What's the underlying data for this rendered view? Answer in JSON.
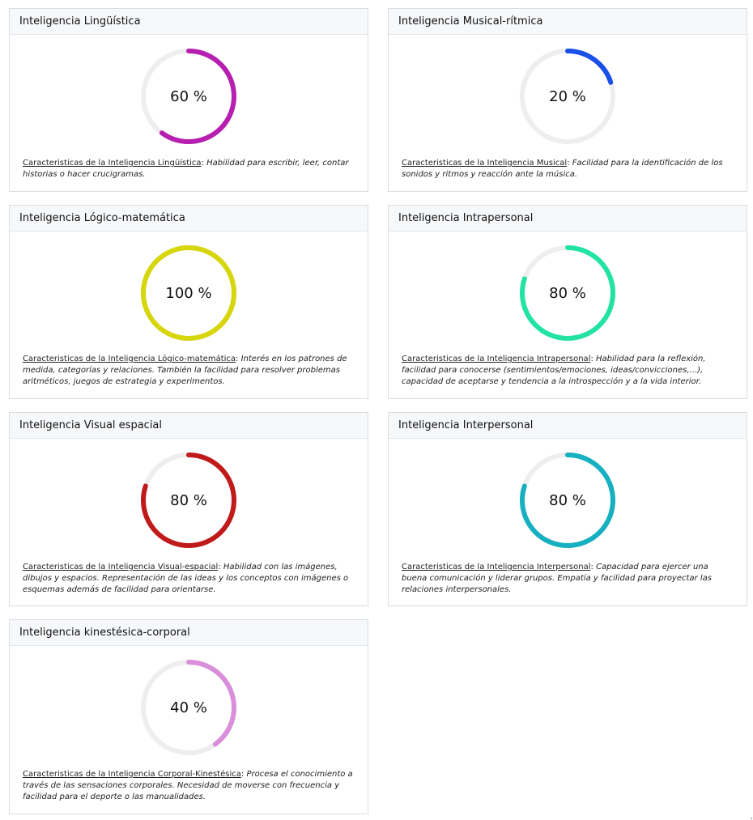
{
  "cards": [
    {
      "title": "Inteligencia Lingüística",
      "percent": 60,
      "percent_label": "60 %",
      "color": "#b71fb0",
      "term": "Caracteristicas de la Inteligencia Lingüística",
      "sep": ": ",
      "text": "Habilidad para escribir, leer, contar historias o hacer crucigramas."
    },
    {
      "title": "Inteligencia Musical-rítmica",
      "percent": 20,
      "percent_label": "20 %",
      "color": "#1a4fe8",
      "term": "Caracteristicas de la Inteligencia Musical",
      "sep": ": ",
      "text": "Facilidad para la identificación de los sonidos y ritmos y reacción ante la música."
    },
    {
      "title": "Inteligencia Lógico-matemática",
      "percent": 100,
      "percent_label": "100 %",
      "color": "#d6d60b",
      "term": "Caracteristicas de la Inteligencia Lógico-matemática",
      "sep": ": ",
      "text": "Interés en los patrones de medida, categorías y relaciones. También la facilidad para resolver problemas aritméticos, juegos de estrategia y experimentos."
    },
    {
      "title": "Inteligencia Intrapersonal",
      "percent": 80,
      "percent_label": "80 %",
      "color": "#22e3a0",
      "term": "Caracteristicas de la Inteligencia Intrapersonal",
      "sep": ": ",
      "text": "Habilidad para la reflexión, facilidad para conocerse (sentimientos/emociones, ideas/convicciones,...), capacidad de aceptarse y tendencia a la introspección y a la vida interior."
    },
    {
      "title": "Inteligencia Visual espacial",
      "percent": 80,
      "percent_label": "80 %",
      "color": "#c01a1a",
      "term": "Caracteristicas de la Inteligencia Visual-espacial",
      "sep": ": ",
      "text": "Habilidad con las imágenes, dibujos y espacios. Representación de las ideas y los conceptos con imágenes o esquemas además de facilidad para orientarse."
    },
    {
      "title": "Inteligencia Interpersonal",
      "percent": 80,
      "percent_label": "80 %",
      "color": "#17b0c0",
      "term": "Caracteristicas de la Inteligencia Interpersonal",
      "sep": ": ",
      "text": "Capacidad para ejercer una buena comunicación y liderar grupos. Empatía y facilidad para proyectar las relaciones interpersonales."
    },
    {
      "title": "Inteligencia kinestésica-corporal",
      "percent": 40,
      "percent_label": "40 %",
      "color": "#d98fd9",
      "term": "Caracteristicas de la Inteligencia Corporal-Kinestésica",
      "sep": ": ",
      "text": "Procesa el conocimiento a través de las sensaciones corporales. Necesidad de moverse con frecuencia y facilidad para el deporte o las manualidades."
    }
  ],
  "track_color": "#eeeeee"
}
